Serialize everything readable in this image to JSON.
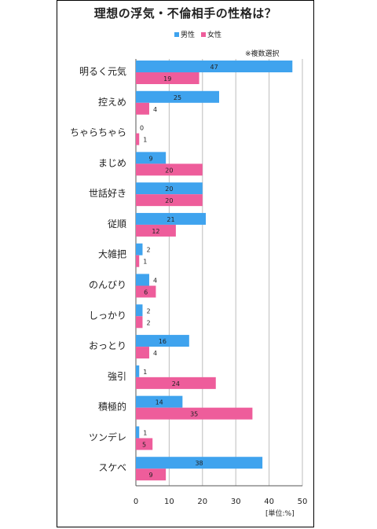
{
  "title": "理想の浮気・不倫相手の性格は？",
  "note": "※複数選択",
  "unit": "[単位:%]",
  "colors": {
    "male": "#3fa3ee",
    "female": "#ee5d9b"
  },
  "chart_data": {
    "type": "bar",
    "orientation": "horizontal",
    "categories": [
      "明るく元気",
      "控えめ",
      "ちゃらちゃら",
      "まじめ",
      "世話好き",
      "従順",
      "大雑把",
      "のんびり",
      "しっかり",
      "おっとり",
      "強引",
      "積極的",
      "ツンデレ",
      "スケベ"
    ],
    "series": [
      {
        "name": "男性",
        "values": [
          47,
          25,
          0,
          9,
          20,
          21,
          2,
          4,
          2,
          16,
          1,
          14,
          1,
          38
        ]
      },
      {
        "name": "女性",
        "values": [
          19,
          4,
          1,
          20,
          20,
          12,
          1,
          6,
          2,
          4,
          24,
          35,
          5,
          9
        ]
      }
    ],
    "xlim": [
      0,
      50
    ],
    "xticks": [
      0,
      10,
      20,
      30,
      40,
      50
    ],
    "grid": true,
    "legend_position": "top-right"
  }
}
